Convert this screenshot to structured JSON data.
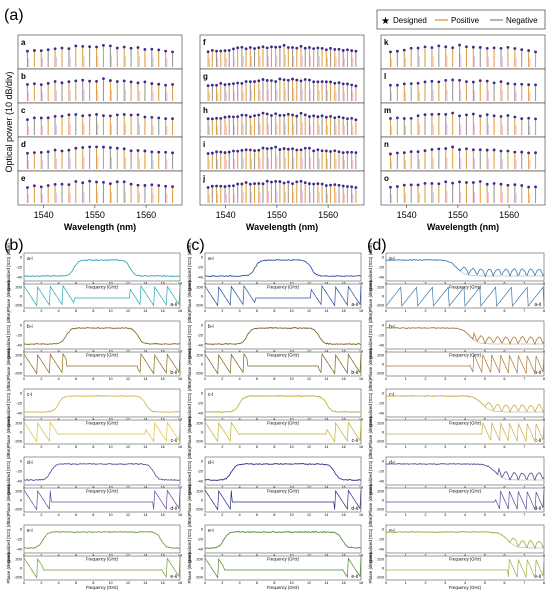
{
  "figure": {
    "panel_labels": [
      "(a)",
      "(b)",
      "(c)",
      "(d)"
    ],
    "legend": [
      {
        "label": "Designed",
        "marker": "star",
        "color": "#1a1a1a"
      },
      {
        "label": "Positive",
        "line": "#e0a24a"
      },
      {
        "label": "Negative",
        "line": "#9a9a9a"
      }
    ]
  },
  "comb": {
    "ylabel": "Optical power (10 dB/div)",
    "xlabel": "Wavelength (nm)",
    "xticks": [
      "1540",
      "1550",
      "1560"
    ],
    "xlim": [
      1535,
      1567
    ],
    "subpanels": [
      [
        "a",
        "b",
        "c",
        "d",
        "e"
      ],
      [
        "f",
        "g",
        "h",
        "i",
        "j"
      ],
      [
        "k",
        "l",
        "m",
        "n",
        "o"
      ]
    ]
  },
  "colors": {
    "positive": "#e0a24a",
    "negative": "#9a9a9a",
    "designed": "#1a1a1a",
    "magenta": "#e070c0",
    "traces_b": [
      "#2aa7b8",
      "#8a6a1e",
      "#d8c040",
      "#6a4aa0",
      "#6aa03a"
    ],
    "traces_c": [
      "#2850a0",
      "#7a6020",
      "#c0b030",
      "#2a2a8a",
      "#4a8a2a"
    ],
    "traces_d": [
      "#3a7ab0",
      "#b07838",
      "#c8b048",
      "#5a4a9a",
      "#9ab040"
    ]
  },
  "response": {
    "ylabel_amp": "Normalized |S21| (dBm)",
    "ylabel_phase": "Phase (degree)",
    "xlabel": "Frequency (GHz)",
    "b_xticks": [
      "0",
      "2",
      "4",
      "6",
      "8",
      "10",
      "12",
      "14",
      "16",
      "18"
    ],
    "c_xticks": [
      "0",
      "2",
      "4",
      "6",
      "8",
      "10",
      "12",
      "14",
      "16",
      "18"
    ],
    "d_xticks": [
      "0",
      "1",
      "2",
      "3",
      "4",
      "5",
      "6",
      "7",
      "8"
    ],
    "amp_yticks": [
      "0",
      "-20",
      "-40"
    ],
    "phase_yticks": [
      "200",
      "0",
      "-200"
    ],
    "b": [
      {
        "amp_label": "a-i",
        "phase_label": "a-ii"
      },
      {
        "amp_label": "b-i",
        "phase_label": "b-ii"
      },
      {
        "amp_label": "c-i",
        "phase_label": "c-ii"
      },
      {
        "amp_label": "d-i",
        "phase_label": "d-ii"
      },
      {
        "amp_label": "e-i",
        "phase_label": "e-ii"
      }
    ],
    "c": [
      {
        "amp_label": "a-i",
        "phase_label": "a-ii"
      },
      {
        "amp_label": "b-i",
        "phase_label": "b-ii"
      },
      {
        "amp_label": "c-i",
        "phase_label": "c-ii"
      },
      {
        "amp_label": "d-i",
        "phase_label": "d-ii"
      },
      {
        "amp_label": "e-i",
        "phase_label": "e-ii"
      }
    ],
    "d": [
      {
        "amp_label": "a-i",
        "phase_label": "a-ii"
      },
      {
        "amp_label": "b-i",
        "phase_label": "b-ii"
      },
      {
        "amp_label": "c-i",
        "phase_label": "c-ii"
      },
      {
        "amp_label": "d-i",
        "phase_label": "d-ii"
      },
      {
        "amp_label": "e-i",
        "phase_label": "e-ii"
      }
    ]
  },
  "chart_data": [
    {
      "type": "bar",
      "ylabel": "Optical power (10 dB/div)",
      "xlabel": "Wavelength (nm)",
      "xlim": [
        1535,
        1567
      ],
      "xticks": [
        1540,
        1550,
        1560
      ],
      "series": [
        {
          "name": "Designed"
        },
        {
          "name": "Positive"
        },
        {
          "name": "Negative"
        }
      ],
      "subplots": [
        "a",
        "b",
        "c",
        "d",
        "e",
        "f",
        "g",
        "h",
        "i",
        "j",
        "k",
        "l",
        "m",
        "n",
        "o"
      ]
    },
    {
      "type": "line",
      "ylabel": "Normalized |S21| (dBm)",
      "xlabel": "Frequency (GHz)",
      "xlim": [
        0,
        18
      ],
      "ylim": [
        -50,
        10
      ],
      "subplots": [
        "a-i",
        "b-i",
        "c-i",
        "d-i",
        "e-i"
      ]
    },
    {
      "type": "line",
      "ylabel": "Phase (degree)",
      "xlabel": "Frequency (GHz)",
      "ylim": [
        -200,
        200
      ],
      "subplots": [
        "a-ii",
        "b-ii",
        "c-ii",
        "d-ii",
        "e-ii"
      ]
    }
  ]
}
